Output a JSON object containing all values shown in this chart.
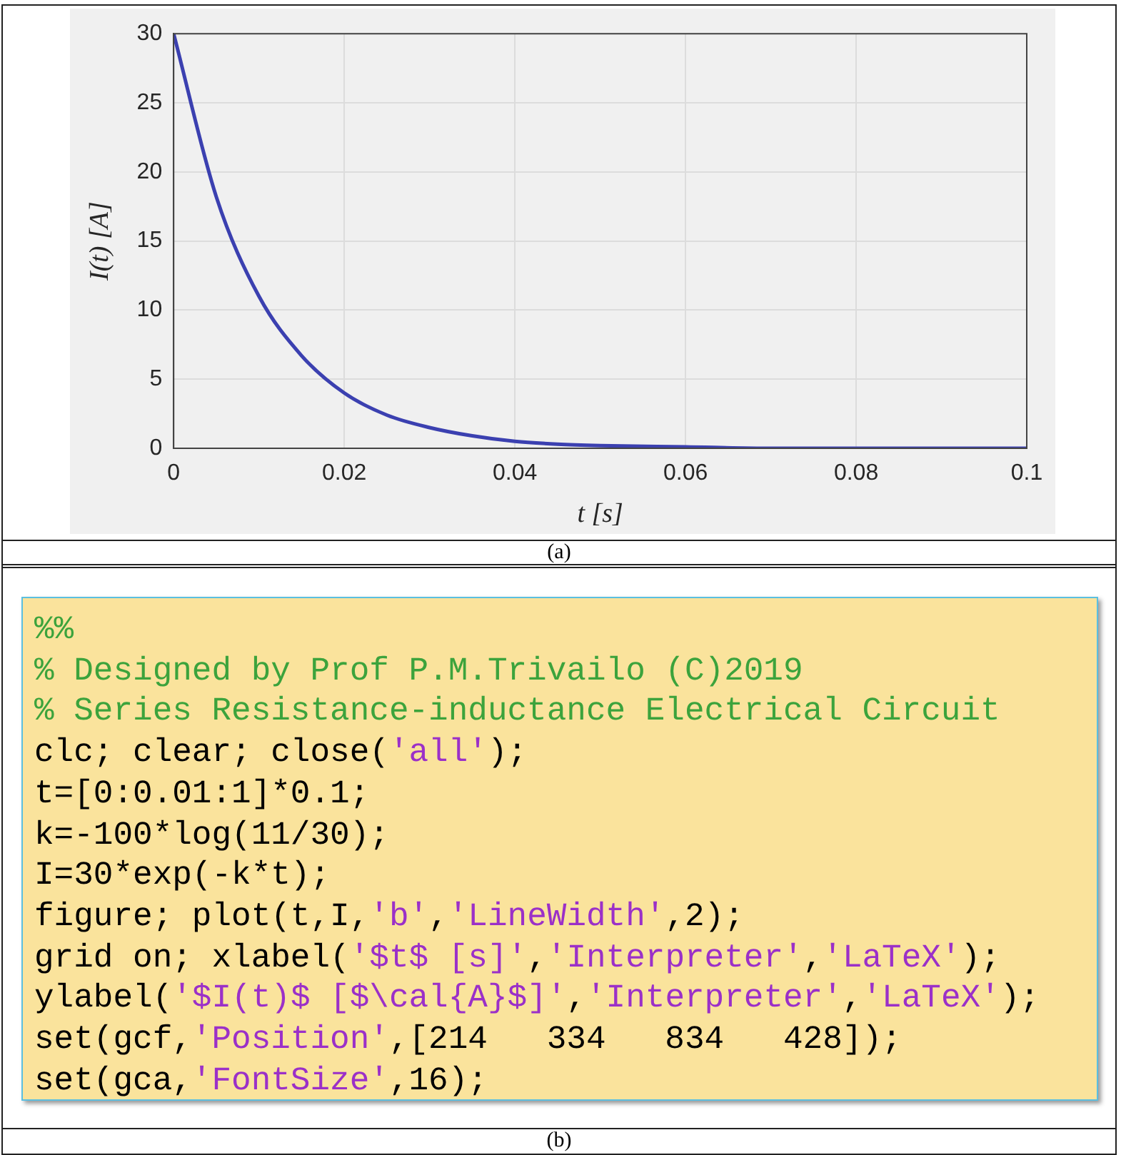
{
  "chart_data": [
    {
      "type": "line",
      "xlabel": "t [s]",
      "ylabel": "I(t) [A]",
      "x": [
        0,
        0.005,
        0.01,
        0.015,
        0.02,
        0.025,
        0.03,
        0.035,
        0.04,
        0.045,
        0.05,
        0.06,
        0.07,
        0.08,
        0.1
      ],
      "series": [
        {
          "color": "#3b40b0",
          "values": [
            30,
            18.2,
            11,
            6.7,
            4,
            2.4,
            1.5,
            0.9,
            0.5,
            0.3,
            0.2,
            0.1,
            0,
            0,
            0
          ]
        }
      ],
      "xlim": [
        0,
        0.1
      ],
      "xticks": [
        0,
        0.02,
        0.04,
        0.06,
        0.08,
        0.1
      ],
      "ylim": [
        0,
        30
      ],
      "yticks": [
        0,
        5,
        10,
        15,
        20,
        25,
        30
      ],
      "grid": true,
      "marker": "none",
      "legend": false,
      "annotations": [
        "(a)"
      ]
    },
    {
      "type": "other",
      "annotations": [
        "%%",
        "% Designed by Prof P.M.Trivailo (C)2019",
        "% Series Resistance-inductance Electrical Circuit",
        "clc; clear; close('all');",
        "t=[0:0.01:1]*0.1;",
        "k=-100*log(11/30);",
        "I=30*exp(-k*t);",
        "figure; plot(t,I,'b','LineWidth',2);",
        "grid on; xlabel('$t$ [s]','Interpreter','LaTeX');",
        "ylabel('$I(t)$ [$\\cal{A}$]','Interpreter','LaTeX');",
        "set(gcf,'Position',[214   334   834   428]);",
        "set(gca,'FontSize',16);",
        "(b)"
      ]
    }
  ]
}
